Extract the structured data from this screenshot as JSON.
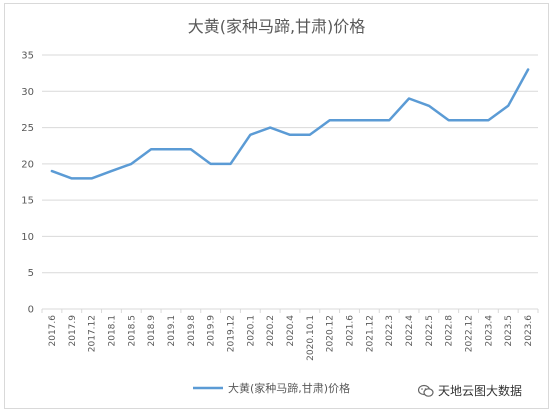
{
  "chart_data": {
    "type": "line",
    "title": "大黄(家种马蹄,甘肃)价格",
    "xlabel": "",
    "ylabel": "",
    "ylim": [
      0,
      35
    ],
    "yticks": [
      0,
      5,
      10,
      15,
      20,
      25,
      30,
      35
    ],
    "grid": true,
    "legend_position": "bottom",
    "categories": [
      "2017.6",
      "2017.9",
      "2017.12",
      "2018.1",
      "2018.5",
      "2018.9",
      "2019.1",
      "2019.8",
      "2019.9",
      "2019.12",
      "2020.1",
      "2020.2",
      "2020.4",
      "2020.10.1",
      "2020.12",
      "2021.6",
      "2021.12",
      "2022.3",
      "2022.4",
      "2022.5",
      "2022.8",
      "2022.12",
      "2023.4",
      "2023.5",
      "2023.6"
    ],
    "series": [
      {
        "name": "大黄(家种马蹄,甘肃)价格",
        "color": "#5b9bd5",
        "values": [
          19,
          18,
          18,
          19,
          20,
          22,
          22,
          22,
          20,
          20,
          24,
          25,
          24,
          24,
          26,
          26,
          26,
          26,
          29,
          28,
          26,
          26,
          26,
          28,
          33
        ]
      }
    ]
  },
  "watermark": {
    "text": "天地云图大数据",
    "icon": "wechat-icon"
  }
}
